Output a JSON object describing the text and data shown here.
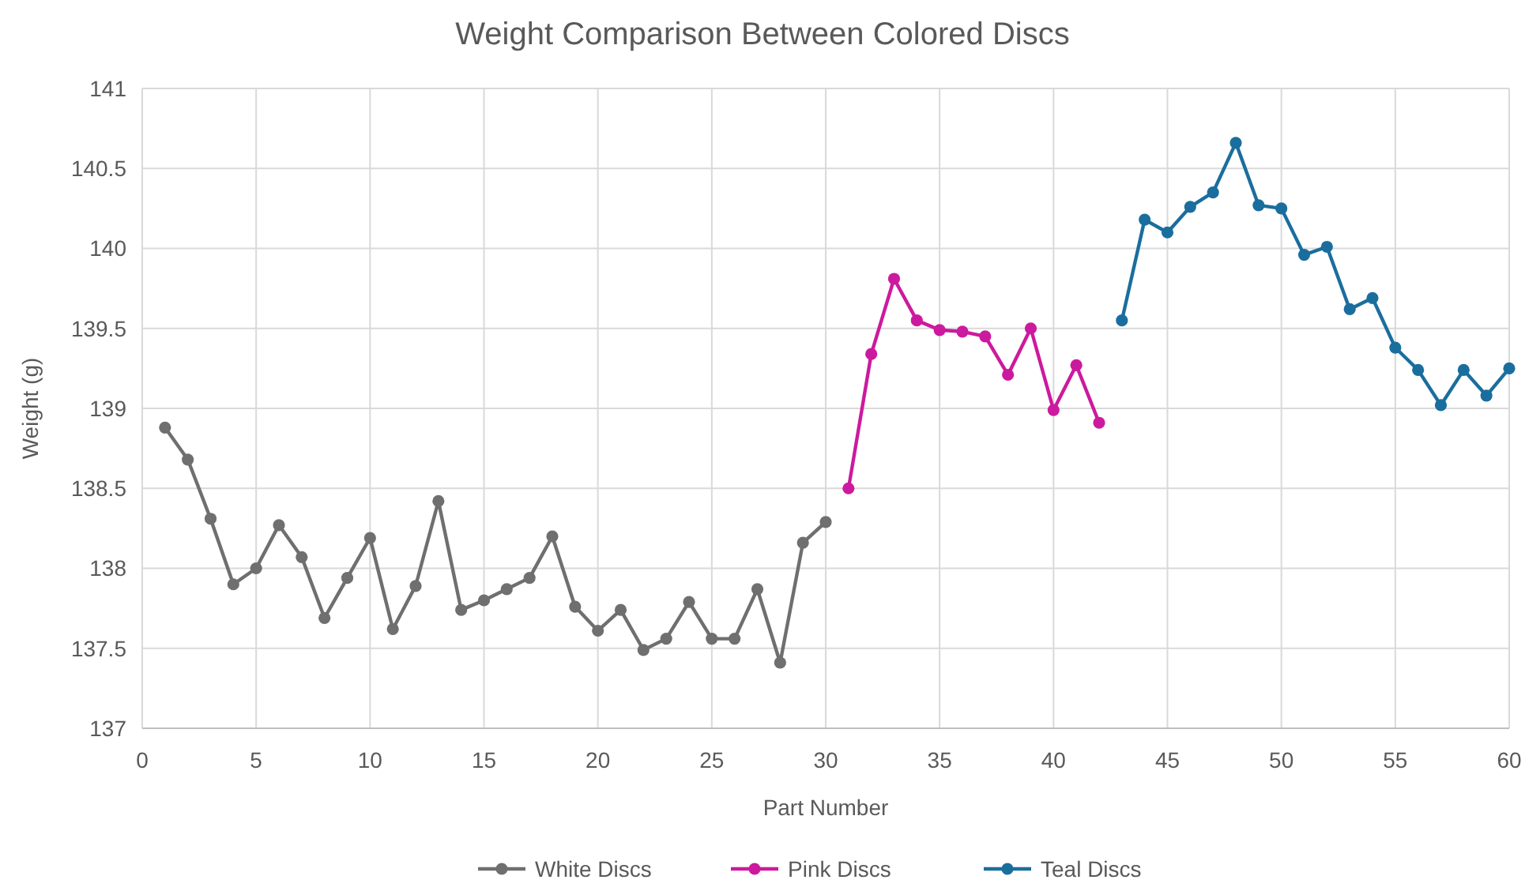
{
  "chart_data": {
    "type": "line",
    "title": "Weight Comparison Between Colored Discs",
    "xlabel": "Part Number",
    "ylabel": "Weight (g)",
    "xlim": [
      0,
      60
    ],
    "xticks": [
      0,
      5,
      10,
      15,
      20,
      25,
      30,
      35,
      40,
      45,
      50,
      55,
      60
    ],
    "ylim": [
      137,
      141
    ],
    "yticks": [
      137,
      137.5,
      138,
      138.5,
      139,
      139.5,
      140,
      140.5,
      141
    ],
    "grid": true,
    "legend": "bottom",
    "marker": "circle",
    "line_style": "solid",
    "series": [
      {
        "name": "White Discs",
        "color": "#6f6f6f",
        "x": [
          1,
          2,
          3,
          4,
          5,
          6,
          7,
          8,
          9,
          10,
          11,
          12,
          13,
          14,
          15,
          16,
          17,
          18,
          19,
          20,
          21,
          22,
          23,
          24,
          25,
          26,
          27,
          28,
          29,
          30
        ],
        "values": [
          138.88,
          138.68,
          138.31,
          137.9,
          138,
          138.27,
          138.07,
          137.69,
          137.94,
          138.19,
          137.62,
          137.89,
          138.42,
          137.74,
          137.8,
          137.87,
          137.94,
          138.2,
          137.76,
          137.61,
          137.74,
          137.49,
          137.56,
          137.79,
          137.56,
          137.56,
          137.87,
          137.41,
          138.16,
          138.29
        ]
      },
      {
        "name": "Pink Discs",
        "color": "#cc1a9e",
        "x": [
          31,
          32,
          33,
          34,
          35,
          36,
          37,
          38,
          39,
          40,
          41,
          42
        ],
        "values": [
          138.5,
          139.34,
          139.81,
          139.55,
          139.49,
          139.48,
          139.45,
          139.21,
          139.5,
          138.99,
          139.27,
          138.91
        ]
      },
      {
        "name": "Teal Discs",
        "color": "#1a6e9e",
        "x": [
          43,
          44,
          45,
          46,
          47,
          48,
          49,
          50,
          51,
          52,
          53,
          54,
          55,
          56,
          57,
          58,
          59,
          60
        ],
        "values": [
          139.55,
          140.18,
          140.1,
          140.26,
          140.35,
          140.66,
          140.27,
          140.25,
          139.96,
          140.01,
          139.62,
          139.69,
          139.38,
          139.24,
          139.02,
          139.24,
          139.08,
          139.25
        ]
      }
    ]
  }
}
